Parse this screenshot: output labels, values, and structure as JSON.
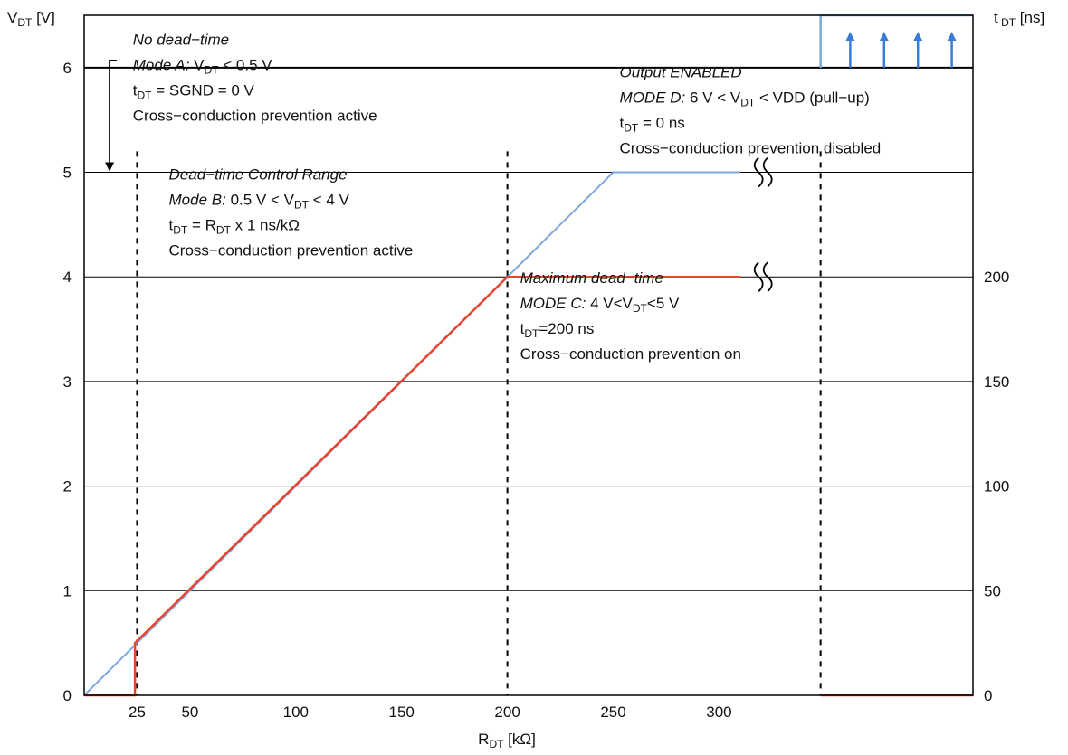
{
  "chart_data": {
    "type": "line",
    "xlabel": {
      "main": "R",
      "sub": "DT",
      "tail": " [kΩ]"
    },
    "ylabel_left": {
      "main": "V",
      "sub": "DT",
      "tail": "  [V]"
    },
    "ylabel_right": {
      "main": "t",
      "sub": " DT",
      "tail": "  [ns]"
    },
    "x_ticks": [
      25,
      50,
      100,
      150,
      200,
      250,
      300
    ],
    "x_tick_labels": [
      "25",
      "50",
      "100",
      "150",
      "200",
      "250",
      "300"
    ],
    "xlim": [
      0,
      420
    ],
    "y_left_ticks": [
      0,
      1,
      2,
      3,
      4,
      5,
      6
    ],
    "y_left_tick_labels": [
      "0",
      "1",
      "2",
      "3",
      "4",
      "5",
      "6"
    ],
    "ylim_left": [
      0,
      6.5
    ],
    "y_right_ticks": [
      0,
      50,
      100,
      150,
      200
    ],
    "y_right_tick_labels": [
      "0",
      "50",
      "100",
      "150",
      "200"
    ],
    "ylim_right": [
      0,
      325
    ],
    "grid": "horizontal",
    "series": [
      {
        "axis": "left",
        "color": "#7EA6E0",
        "points": [
          [
            0,
            0
          ],
          [
            250,
            5
          ],
          [
            310,
            5
          ]
        ],
        "upper_step_points": [
          [
            348,
            6
          ],
          [
            348,
            6.5
          ],
          [
            420,
            6.5
          ]
        ]
      },
      {
        "axis": "right",
        "color": "#E8452C",
        "points": [
          [
            0,
            0
          ],
          [
            24,
            0
          ],
          [
            24,
            25
          ],
          [
            200,
            200
          ],
          [
            310,
            200
          ]
        ],
        "tail_points": [
          [
            348,
            0
          ],
          [
            420,
            0
          ]
        ]
      }
    ],
    "vlines_dashed": [
      25,
      200,
      348
    ],
    "break_marks": [
      {
        "x": 320,
        "y_left": 5
      },
      {
        "x": 320,
        "y_left": 4
      }
    ],
    "mode_a_bracket": {
      "x": 12,
      "from_y": 6,
      "to_y": 5
    },
    "enable_arrows_x": [
      362,
      378,
      394,
      410
    ],
    "annotations": [
      {
        "lines": [
          [
            {
              "t": "No dead−time",
              "i": true
            }
          ],
          [
            {
              "t": "Mode A: ",
              "i": true
            },
            {
              "t": "V"
            },
            {
              "t": "DT",
              "s": true
            },
            {
              "t": " < 0.5 V"
            }
          ],
          [
            {
              "t": "t"
            },
            {
              "t": "DT",
              "s": true
            },
            {
              "t": " = SGND = 0 V"
            }
          ],
          [
            {
              "t": "Cross−conduction prevention active"
            }
          ]
        ]
      },
      {
        "lines": [
          [
            {
              "t": "Dead−time Control Range",
              "i": true
            }
          ],
          [
            {
              "t": "Mode B: ",
              "i": true
            },
            {
              "t": "0.5 V < V"
            },
            {
              "t": "DT",
              "s": true
            },
            {
              "t": " < 4 V"
            }
          ],
          [
            {
              "t": "t"
            },
            {
              "t": "DT",
              "s": true
            },
            {
              "t": " = R"
            },
            {
              "t": "DT",
              "s": true
            },
            {
              "t": " x 1 ns/kΩ"
            }
          ],
          [
            {
              "t": "Cross−conduction prevention active"
            }
          ]
        ]
      },
      {
        "lines": [
          [
            {
              "t": "Maximum dead−time",
              "i": true
            }
          ],
          [
            {
              "t": "MODE C: ",
              "i": true
            },
            {
              "t": "4 V<V"
            },
            {
              "t": "DT",
              "s": true
            },
            {
              "t": "<5 V"
            }
          ],
          [
            {
              "t": "t"
            },
            {
              "t": "DT",
              "s": true
            },
            {
              "t": "=200 ns"
            }
          ],
          [
            {
              "t": "Cross−conduction prevention on"
            }
          ]
        ]
      },
      {
        "lines": [
          [
            {
              "t": "Output ENABLED",
              "i": true
            }
          ],
          [
            {
              "t": "MODE D: ",
              "i": true
            },
            {
              "t": "6 V < V"
            },
            {
              "t": "DT",
              "s": true
            },
            {
              "t": " < VDD (pull−up)"
            }
          ],
          [
            {
              "t": "t"
            },
            {
              "t": "DT",
              "s": true
            },
            {
              "t": " = 0 ns"
            }
          ],
          [
            {
              "t": "Cross−conduction prevention disabled"
            }
          ]
        ]
      }
    ]
  },
  "colors": {
    "left_axis": "#1A84C7",
    "right_axis": "#F04E1C",
    "blue_line": "#7EA6E0",
    "red_line": "#E8452C",
    "arrow": "#3A7BD5",
    "grid": "#000000"
  }
}
